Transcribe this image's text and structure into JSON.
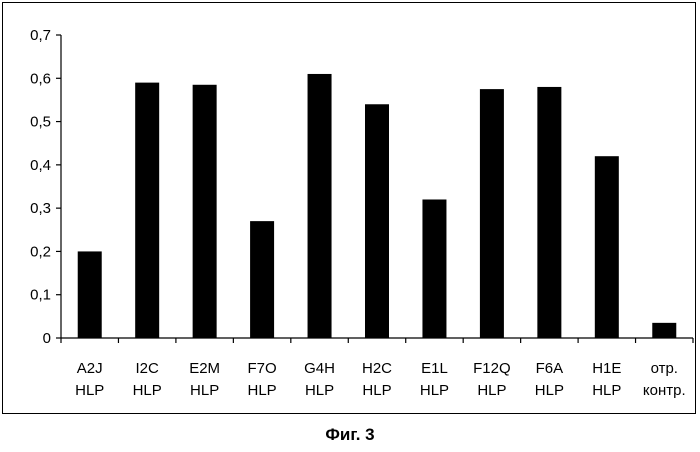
{
  "caption": "Фиг. 3",
  "chart_data": {
    "type": "bar",
    "categories": [
      [
        "A2J",
        "HLP"
      ],
      [
        "I2C",
        "HLP"
      ],
      [
        "E2M",
        "HLP"
      ],
      [
        "F7O",
        "HLP"
      ],
      [
        "G4H",
        "HLP"
      ],
      [
        "H2C",
        "HLP"
      ],
      [
        "E1L",
        "HLP"
      ],
      [
        "F12Q",
        "HLP"
      ],
      [
        "F6A",
        "HLP"
      ],
      [
        "H1E",
        "HLP"
      ],
      [
        "отр.",
        "контр."
      ]
    ],
    "values": [
      0.2,
      0.59,
      0.585,
      0.27,
      0.61,
      0.54,
      0.32,
      0.575,
      0.58,
      0.42,
      0.035
    ],
    "yticks": [
      "0",
      "0,1",
      "0,2",
      "0,3",
      "0,4",
      "0,5",
      "0,6",
      "0,7"
    ],
    "ylim": [
      0,
      0.7
    ],
    "bar_color": "#000000",
    "grid": false,
    "legend": false
  }
}
